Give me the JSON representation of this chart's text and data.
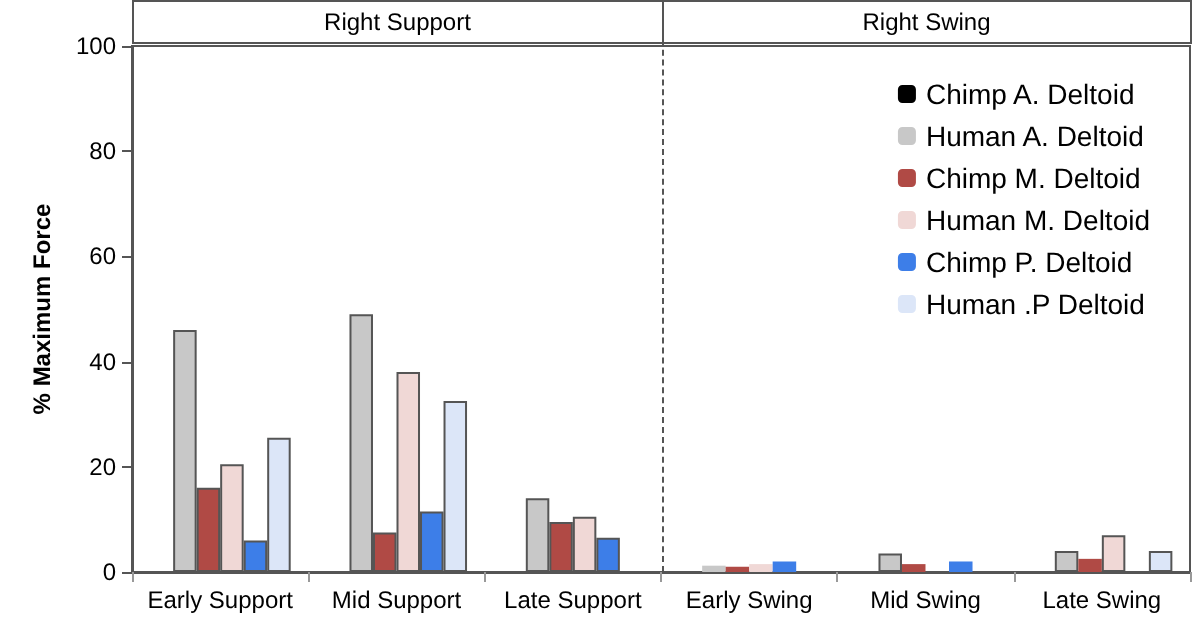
{
  "chart_data": {
    "type": "bar",
    "ylabel": "% Maximum Force",
    "categories": [
      "Early Support",
      "Mid Support",
      "Late Support",
      "Early Swing",
      "Mid Swing",
      "Late Swing"
    ],
    "series": [
      {
        "name": "Chimp A. Deltoid",
        "color": "#000000",
        "values": [
          0,
          0,
          0,
          0,
          0,
          0
        ]
      },
      {
        "name": "Human A. Deltoid",
        "color": "#c8c8c8",
        "values": [
          46,
          49,
          14,
          1.2,
          3.5,
          4
        ]
      },
      {
        "name": "Chimp M. Deltoid",
        "color": "#b04a45",
        "values": [
          16,
          7.5,
          9.5,
          1,
          1.5,
          2.5
        ]
      },
      {
        "name": "Human M. Deltoid",
        "color": "#f0d8d6",
        "values": [
          20.5,
          38,
          10.5,
          1.5,
          0,
          7
        ]
      },
      {
        "name": "Chimp P. Deltoid",
        "color": "#3d7ee8",
        "values": [
          6,
          11.5,
          6.5,
          2,
          2,
          0
        ]
      },
      {
        "name": "Human .P Deltoid",
        "color": "#dce6f8",
        "values": [
          25.5,
          32.5,
          0,
          0,
          0,
          4
        ]
      }
    ],
    "annotations": [
      "Right Support",
      "Right Swing"
    ],
    "ylim": [
      0,
      100
    ],
    "yticks": [
      0,
      20,
      40,
      60,
      80,
      100
    ],
    "grid": false,
    "legend": "top right"
  }
}
